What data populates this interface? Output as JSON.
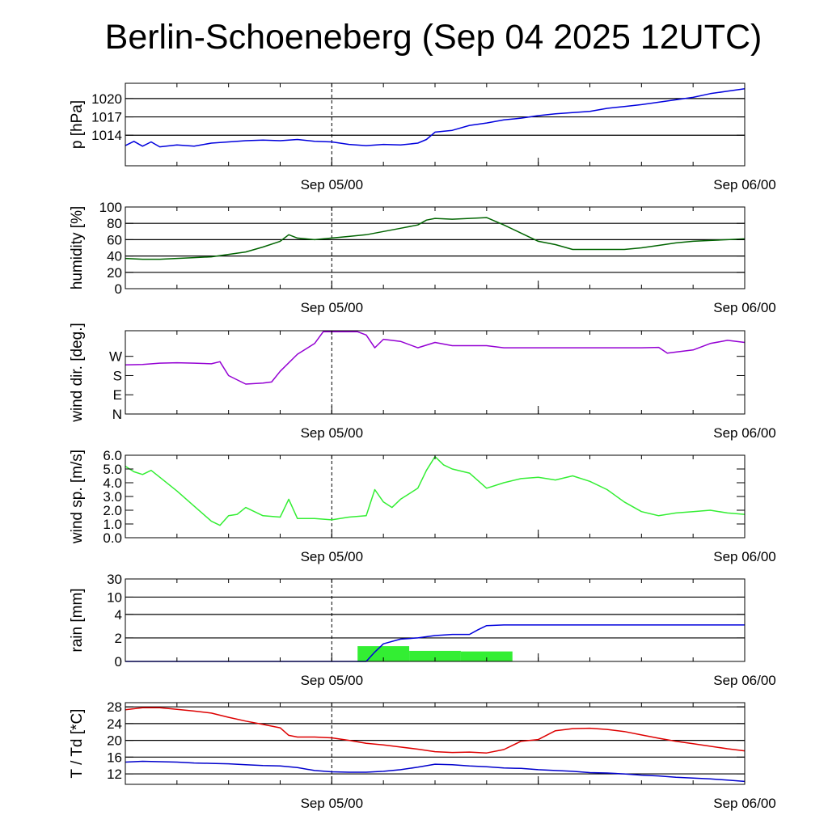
{
  "title": "Berlin-Schoeneberg (Sep 04 2025 12UTC)",
  "x_axis": {
    "range_hours": [
      0,
      36
    ],
    "marker_hours": 12,
    "ticks": [
      {
        "h": 12,
        "label": "Sep 05/00"
      },
      {
        "h": 36,
        "label": "Sep 06/00"
      }
    ]
  },
  "colors": {
    "pressure": "#0000dd",
    "humidity": "#006400",
    "wind_dir": "#9400d3",
    "wind_speed": "#33ee33",
    "rain_bar": "#33ee33",
    "rain_cum": "#0000dd",
    "temperature": "#dd0000",
    "dewpoint": "#0000cc"
  },
  "chart_data": [
    {
      "id": "pressure",
      "type": "line",
      "ylabel": "p [hPa]",
      "ylim": [
        1009,
        1022.5
      ],
      "yticks": [
        1014,
        1017,
        1020
      ],
      "ytick_labels": [
        "1014",
        "1017",
        "1020"
      ],
      "grid": true,
      "series": [
        {
          "color_key": "pressure",
          "x": [
            0,
            0.5,
            1,
            1.5,
            2,
            3,
            4,
            5,
            6,
            7,
            8,
            9,
            10,
            11,
            12,
            13,
            14,
            15,
            16,
            17,
            17.5,
            18,
            19,
            20,
            21,
            22,
            23,
            24,
            25,
            26,
            27,
            28,
            29,
            30,
            31,
            32,
            33,
            34,
            35,
            36
          ],
          "y": [
            1012.3,
            1013.0,
            1012.2,
            1012.9,
            1012.1,
            1012.4,
            1012.2,
            1012.7,
            1012.9,
            1013.1,
            1013.2,
            1013.1,
            1013.3,
            1013.0,
            1012.9,
            1012.5,
            1012.3,
            1012.5,
            1012.4,
            1012.7,
            1013.3,
            1014.5,
            1014.8,
            1015.6,
            1016.0,
            1016.5,
            1016.8,
            1017.2,
            1017.5,
            1017.7,
            1017.9,
            1018.4,
            1018.7,
            1019.0,
            1019.4,
            1019.8,
            1020.2,
            1020.8,
            1021.2,
            1021.6
          ]
        }
      ]
    },
    {
      "id": "humidity",
      "type": "line",
      "ylabel": "humidity [%]",
      "ylim": [
        0,
        100
      ],
      "yticks": [
        0,
        20,
        40,
        60,
        80,
        100
      ],
      "ytick_labels": [
        "0",
        "20",
        "40",
        "60",
        "80",
        "100"
      ],
      "grid": true,
      "series": [
        {
          "color_key": "humidity",
          "x": [
            0,
            1,
            2,
            3,
            4,
            5,
            6,
            7,
            8,
            9,
            9.5,
            10,
            10.5,
            11,
            12,
            13,
            14,
            15,
            16,
            17,
            17.5,
            18,
            19,
            20,
            21,
            22,
            23,
            24,
            25,
            26,
            27,
            28,
            29,
            30,
            31,
            32,
            33,
            34,
            35,
            36
          ],
          "y": [
            37,
            36,
            36,
            37,
            38,
            39,
            42,
            45,
            51,
            58,
            66,
            62,
            61,
            60,
            62,
            64,
            66,
            70,
            74,
            78,
            84,
            86,
            85,
            86,
            87,
            78,
            68,
            58,
            54,
            48,
            48,
            48,
            48,
            50,
            53,
            56,
            58,
            59,
            60,
            61
          ]
        }
      ]
    },
    {
      "id": "wind_dir",
      "type": "line",
      "ylabel": "wind dir. [deg.]",
      "ylim": [
        0,
        390
      ],
      "yticks": [
        0,
        90,
        180,
        270
      ],
      "ytick_labels": [
        "N",
        "E",
        "S",
        "W"
      ],
      "grid": false,
      "series": [
        {
          "color_key": "wind_dir",
          "x": [
            0,
            1,
            2,
            3,
            4,
            5,
            5.5,
            6,
            7,
            8,
            8.5,
            9,
            10,
            11,
            11.5,
            12,
            13,
            13.5,
            14,
            14.5,
            15,
            16,
            17,
            18,
            19,
            20,
            21,
            22,
            23,
            24,
            25,
            26,
            27,
            28,
            29,
            30,
            31,
            31.5,
            32,
            33,
            34,
            35,
            36
          ],
          "y": [
            230,
            232,
            238,
            240,
            238,
            235,
            245,
            180,
            140,
            145,
            150,
            200,
            280,
            330,
            385,
            385,
            385,
            385,
            370,
            310,
            350,
            340,
            310,
            335,
            320,
            320,
            320,
            310,
            310,
            310,
            310,
            310,
            310,
            310,
            310,
            310,
            312,
            285,
            290,
            300,
            330,
            345,
            335
          ]
        }
      ]
    },
    {
      "id": "wind_speed",
      "type": "line",
      "ylabel": "wind sp. [m/s]",
      "ylim": [
        0,
        6
      ],
      "yticks": [
        0,
        1,
        2,
        3,
        4,
        5,
        6
      ],
      "ytick_labels": [
        "0.0",
        "1.0",
        "2.0",
        "3.0",
        "4.0",
        "5.0",
        "6.0"
      ],
      "grid": false,
      "series": [
        {
          "color_key": "wind_speed",
          "x": [
            0,
            0.5,
            1,
            1.5,
            2,
            3,
            4,
            5,
            5.5,
            6,
            6.5,
            7,
            8,
            9,
            9.5,
            10,
            11,
            12,
            13,
            14,
            14.5,
            15,
            15.5,
            16,
            17,
            17.5,
            18,
            18.5,
            19,
            20,
            21,
            22,
            23,
            24,
            25,
            26,
            27,
            28,
            29,
            30,
            31,
            32,
            33,
            34,
            35,
            36
          ],
          "y": [
            5.2,
            4.8,
            4.6,
            4.9,
            4.4,
            3.4,
            2.3,
            1.2,
            0.9,
            1.6,
            1.7,
            2.2,
            1.6,
            1.5,
            2.8,
            1.4,
            1.4,
            1.3,
            1.5,
            1.6,
            3.5,
            2.6,
            2.2,
            2.8,
            3.6,
            4.9,
            5.9,
            5.3,
            5.0,
            4.7,
            3.6,
            4.0,
            4.3,
            4.4,
            4.2,
            4.5,
            4.1,
            3.5,
            2.6,
            1.9,
            1.6,
            1.8,
            1.9,
            2.0,
            1.8,
            1.7
          ]
        }
      ]
    },
    {
      "id": "rain",
      "type": "bar+line",
      "ylabel": "rain [mm]",
      "ylim": [
        0,
        30
      ],
      "yticks": [
        0,
        2,
        4,
        10,
        30
      ],
      "ytick_labels": [
        "0",
        "2",
        "4",
        "10",
        "30"
      ],
      "scale": "piecewise",
      "grid": true,
      "bars": [
        {
          "x0": 13.5,
          "x1": 16.5,
          "value": 1.3
        },
        {
          "x0": 16.5,
          "x1": 19.5,
          "value": 0.9
        },
        {
          "x0": 19.5,
          "x1": 22.5,
          "value": 0.85
        }
      ],
      "series": [
        {
          "color_key": "rain_cum",
          "x": [
            0,
            14,
            14.5,
            15,
            16,
            17,
            18,
            19,
            20,
            20.5,
            21,
            22,
            24,
            30,
            36
          ],
          "y": [
            0,
            0,
            0.8,
            1.5,
            1.9,
            2.0,
            2.2,
            2.3,
            2.3,
            2.7,
            3.05,
            3.1,
            3.1,
            3.1,
            3.1
          ]
        }
      ]
    },
    {
      "id": "temperature",
      "type": "line",
      "ylabel": "T / Td [*C]",
      "ylim": [
        9.5,
        29
      ],
      "yticks": [
        12,
        16,
        20,
        24,
        28
      ],
      "ytick_labels": [
        "12",
        "16",
        "20",
        "24",
        "28"
      ],
      "grid": true,
      "series": [
        {
          "name": "T",
          "color_key": "temperature",
          "x": [
            0,
            1,
            2,
            3,
            4,
            5,
            6,
            7,
            8,
            9,
            9.5,
            10,
            11,
            12,
            13,
            14,
            15,
            16,
            17,
            18,
            19,
            20,
            21,
            22,
            23,
            24,
            25,
            26,
            27,
            28,
            29,
            30,
            31,
            32,
            33,
            34,
            35,
            36
          ],
          "y": [
            27.3,
            27.8,
            27.8,
            27.4,
            27.0,
            26.5,
            25.5,
            24.6,
            23.8,
            23.0,
            21.2,
            20.8,
            20.8,
            20.6,
            20.0,
            19.3,
            18.9,
            18.4,
            17.9,
            17.3,
            17.1,
            17.2,
            17.0,
            17.8,
            19.8,
            20.2,
            22.3,
            22.8,
            22.9,
            22.6,
            22.1,
            21.3,
            20.5,
            19.8,
            19.2,
            18.6,
            18.0,
            17.5
          ]
        },
        {
          "name": "Td",
          "color_key": "dewpoint",
          "x": [
            0,
            1,
            2,
            3,
            4,
            5,
            6,
            7,
            8,
            9,
            10,
            11,
            12,
            13,
            14,
            15,
            16,
            17,
            18,
            19,
            20,
            21,
            22,
            23,
            24,
            25,
            26,
            27,
            28,
            29,
            30,
            31,
            32,
            33,
            34,
            35,
            36
          ],
          "y": [
            14.8,
            15.0,
            14.9,
            14.8,
            14.6,
            14.5,
            14.4,
            14.2,
            14.0,
            13.9,
            13.5,
            12.8,
            12.5,
            12.4,
            12.4,
            12.6,
            13.0,
            13.6,
            14.3,
            14.2,
            13.9,
            13.7,
            13.4,
            13.3,
            13.0,
            12.8,
            12.6,
            12.3,
            12.2,
            12.0,
            11.7,
            11.5,
            11.2,
            11.0,
            10.8,
            10.5,
            10.2
          ]
        }
      ]
    }
  ]
}
